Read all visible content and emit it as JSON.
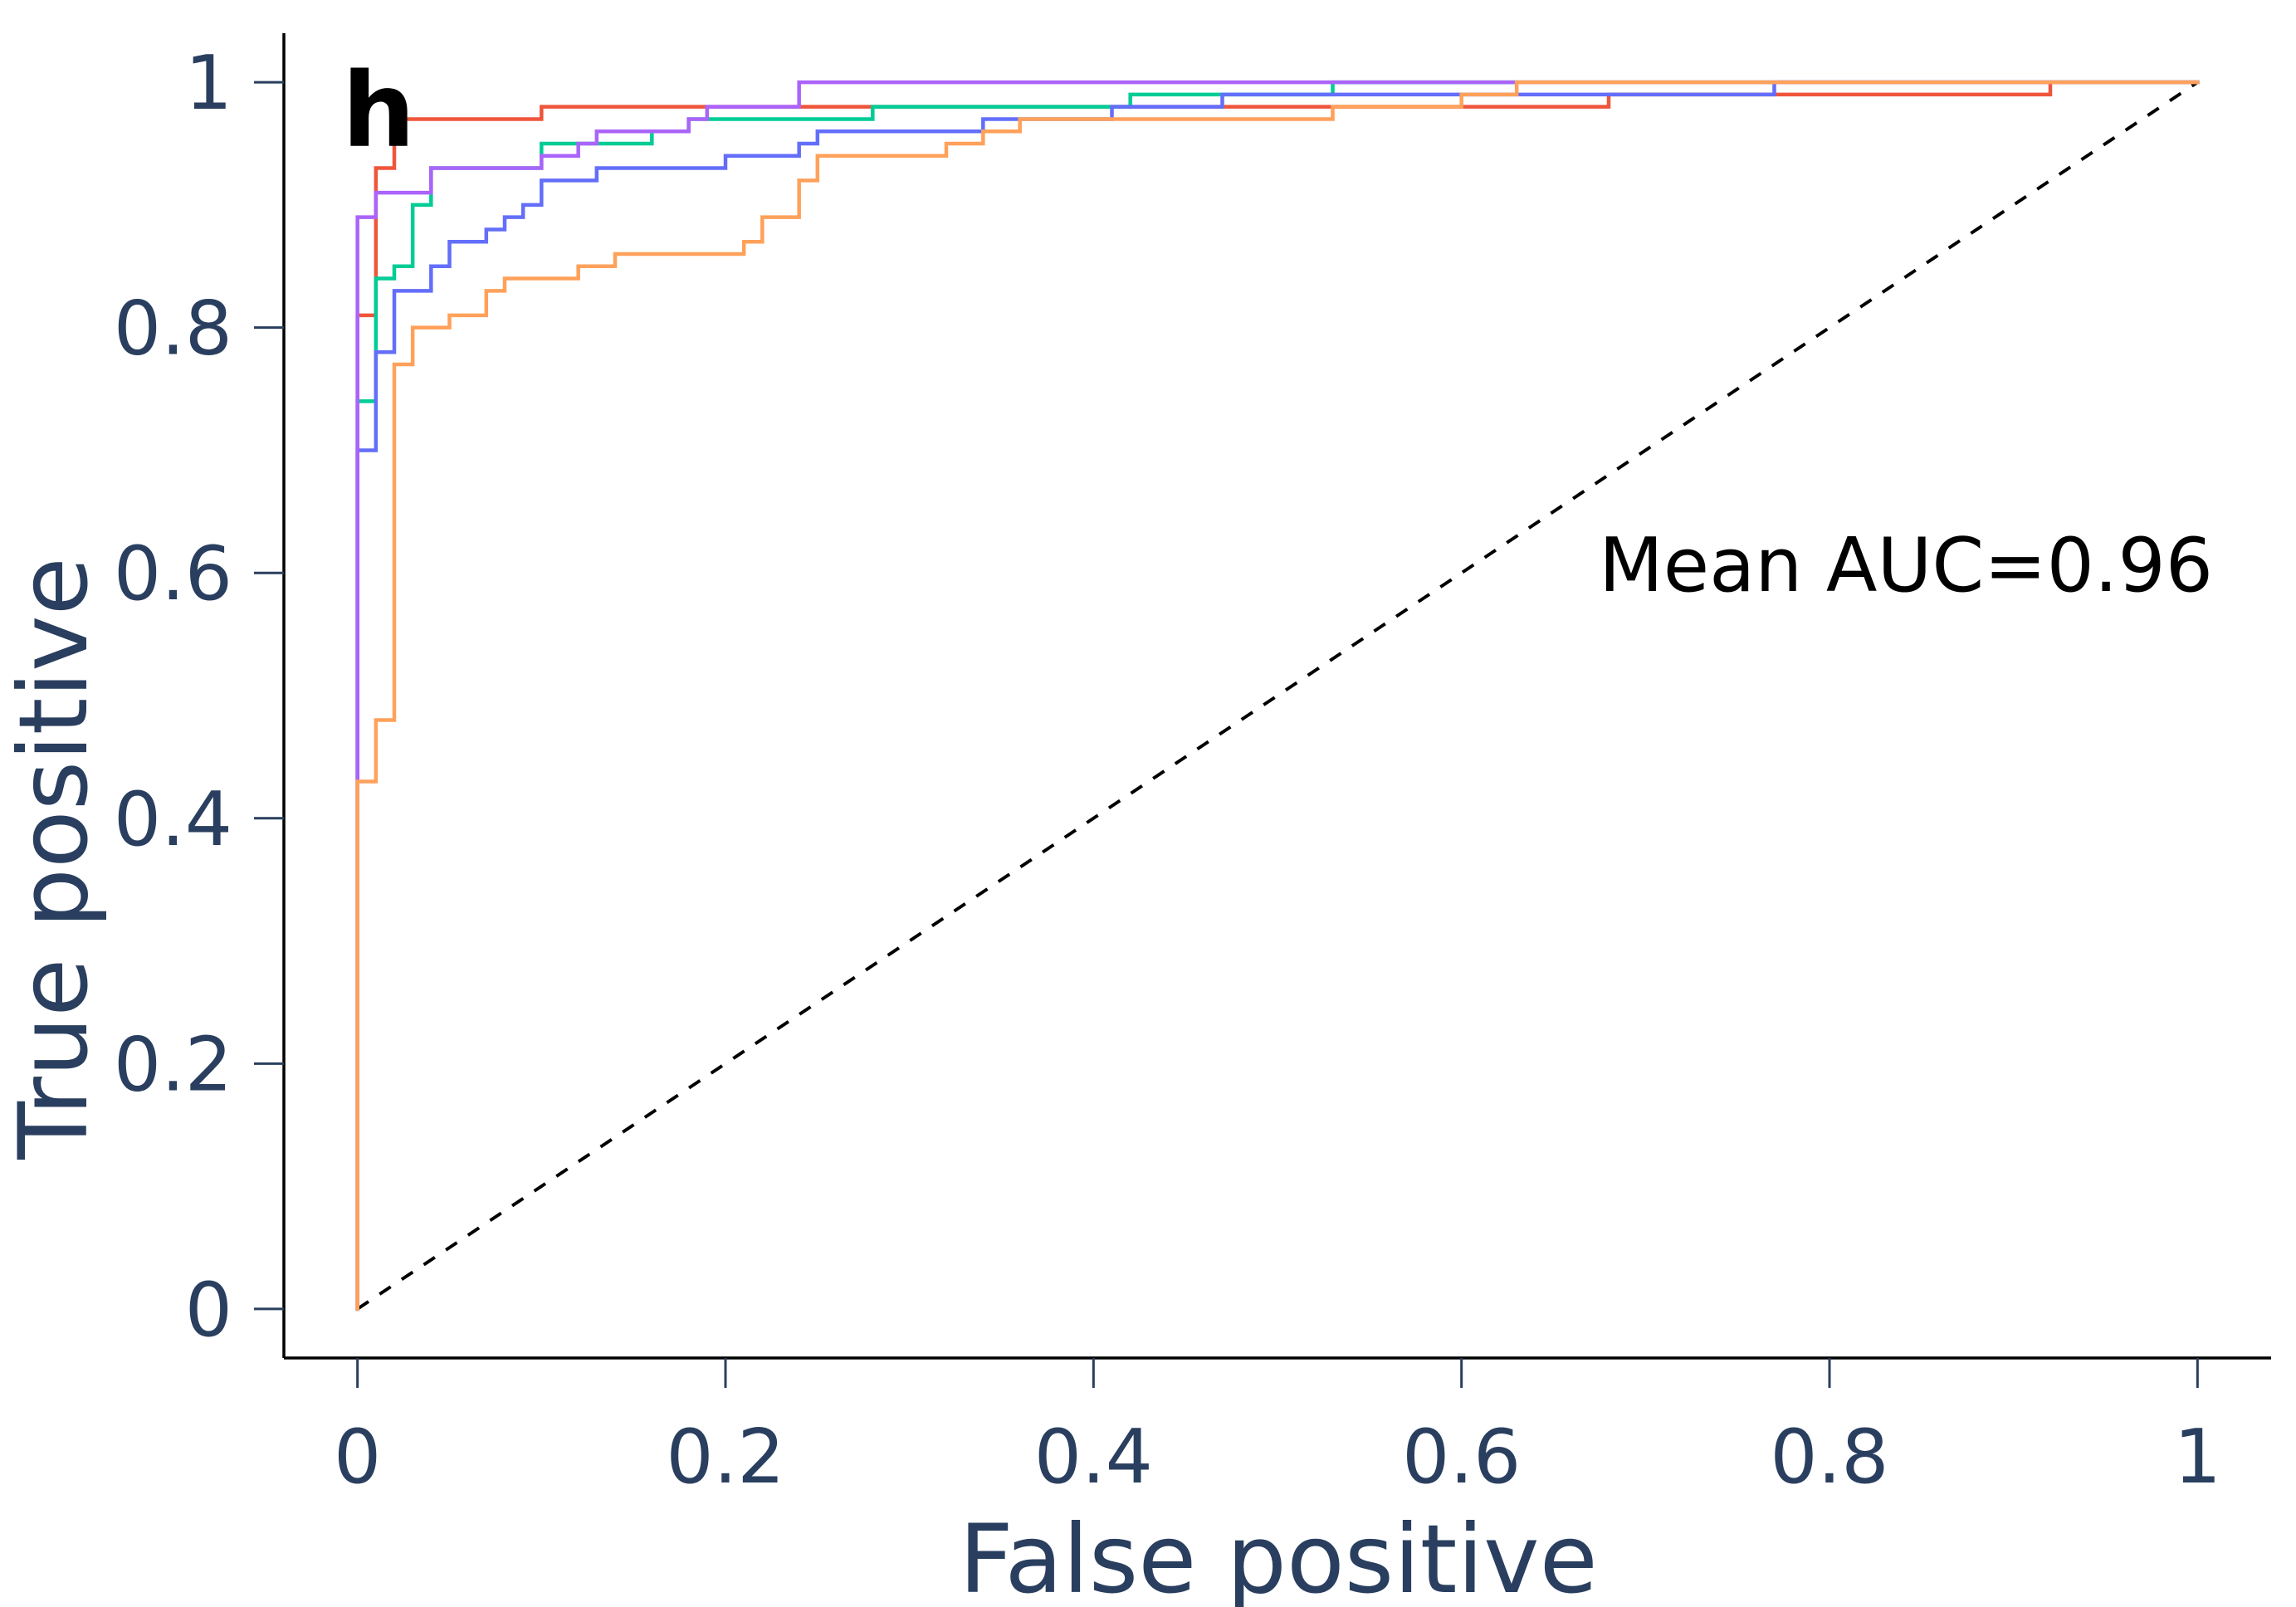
{
  "chart_data": {
    "type": "line",
    "panel_label": "h",
    "title": "",
    "xlabel": "False positive",
    "ylabel": "True positive",
    "xlim": [
      -0.04,
      1.04
    ],
    "ylim": [
      -0.04,
      1.04
    ],
    "x_ticks": [
      0,
      0.2,
      0.4,
      0.6,
      0.8,
      1
    ],
    "x_tick_labels": [
      "0",
      "0.2",
      "0.4",
      "0.6",
      "0.8",
      "1"
    ],
    "y_ticks": [
      0,
      0.2,
      0.4,
      0.6,
      0.8,
      1
    ],
    "y_tick_labels": [
      "0",
      "0.2",
      "0.4",
      "0.6",
      "0.8",
      "1"
    ],
    "grid": false,
    "legend": "none",
    "annotation": "Mean AUC=0.96",
    "diagonal": {
      "x": [
        0,
        1
      ],
      "y": [
        0,
        1
      ],
      "color": "#000000",
      "style": "dashed"
    },
    "series": [
      {
        "color": "#ef553b",
        "x": [
          0,
          0,
          0.01,
          0.01,
          0.02,
          0.02,
          0.1,
          0.1,
          0.41,
          0.41,
          0.68,
          0.68,
          0.92,
          0.92,
          1
        ],
        "y": [
          0,
          0.81,
          0.81,
          0.93,
          0.93,
          0.97,
          0.97,
          0.98,
          0.98,
          0.98,
          0.98,
          0.99,
          0.99,
          1,
          1
        ]
      },
      {
        "color": "#00cc96",
        "x": [
          0,
          0,
          0.01,
          0.01,
          0.02,
          0.02,
          0.03,
          0.03,
          0.04,
          0.04,
          0.1,
          0.1,
          0.16,
          0.16,
          0.18,
          0.18,
          0.28,
          0.28,
          0.42,
          0.42,
          0.53,
          0.53,
          1
        ],
        "y": [
          0,
          0.74,
          0.74,
          0.84,
          0.84,
          0.85,
          0.85,
          0.9,
          0.9,
          0.93,
          0.93,
          0.95,
          0.95,
          0.96,
          0.96,
          0.97,
          0.97,
          0.98,
          0.98,
          0.99,
          0.99,
          1,
          1
        ]
      },
      {
        "color": "#636efa",
        "x": [
          0,
          0,
          0.01,
          0.01,
          0.02,
          0.02,
          0.04,
          0.04,
          0.05,
          0.05,
          0.07,
          0.07,
          0.08,
          0.08,
          0.09,
          0.09,
          0.1,
          0.1,
          0.13,
          0.13,
          0.2,
          0.2,
          0.24,
          0.24,
          0.25,
          0.25,
          0.34,
          0.34,
          0.36,
          0.36,
          0.41,
          0.41,
          0.47,
          0.47,
          0.63,
          0.63,
          0.77,
          0.77,
          1
        ],
        "y": [
          0,
          0.7,
          0.7,
          0.78,
          0.78,
          0.83,
          0.83,
          0.85,
          0.85,
          0.87,
          0.87,
          0.88,
          0.88,
          0.89,
          0.89,
          0.9,
          0.9,
          0.92,
          0.92,
          0.93,
          0.93,
          0.94,
          0.94,
          0.95,
          0.95,
          0.96,
          0.96,
          0.97,
          0.97,
          0.97,
          0.97,
          0.98,
          0.98,
          0.99,
          0.99,
          0.99,
          0.99,
          1,
          1
        ]
      },
      {
        "color": "#ab63fa",
        "x": [
          0,
          0,
          0.01,
          0.01,
          0.04,
          0.04,
          0.1,
          0.1,
          0.12,
          0.12,
          0.13,
          0.13,
          0.18,
          0.18,
          0.19,
          0.19,
          0.24,
          0.24,
          1
        ],
        "y": [
          0,
          0.89,
          0.89,
          0.91,
          0.91,
          0.93,
          0.93,
          0.94,
          0.94,
          0.95,
          0.95,
          0.96,
          0.96,
          0.97,
          0.97,
          0.98,
          0.98,
          1,
          1
        ]
      },
      {
        "color": "#ffa15a",
        "x": [
          0,
          0,
          0.01,
          0.01,
          0.02,
          0.02,
          0.03,
          0.03,
          0.05,
          0.05,
          0.07,
          0.07,
          0.08,
          0.08,
          0.12,
          0.12,
          0.14,
          0.14,
          0.21,
          0.21,
          0.22,
          0.22,
          0.24,
          0.24,
          0.25,
          0.25,
          0.32,
          0.32,
          0.34,
          0.34,
          0.36,
          0.36,
          0.53,
          0.53,
          0.6,
          0.6,
          0.63,
          0.63,
          1
        ],
        "y": [
          0,
          0.43,
          0.43,
          0.48,
          0.48,
          0.77,
          0.77,
          0.8,
          0.8,
          0.81,
          0.81,
          0.83,
          0.83,
          0.84,
          0.84,
          0.85,
          0.85,
          0.86,
          0.86,
          0.87,
          0.87,
          0.89,
          0.89,
          0.92,
          0.92,
          0.94,
          0.94,
          0.95,
          0.95,
          0.96,
          0.96,
          0.97,
          0.97,
          0.98,
          0.98,
          0.99,
          0.99,
          1,
          1
        ]
      }
    ]
  }
}
